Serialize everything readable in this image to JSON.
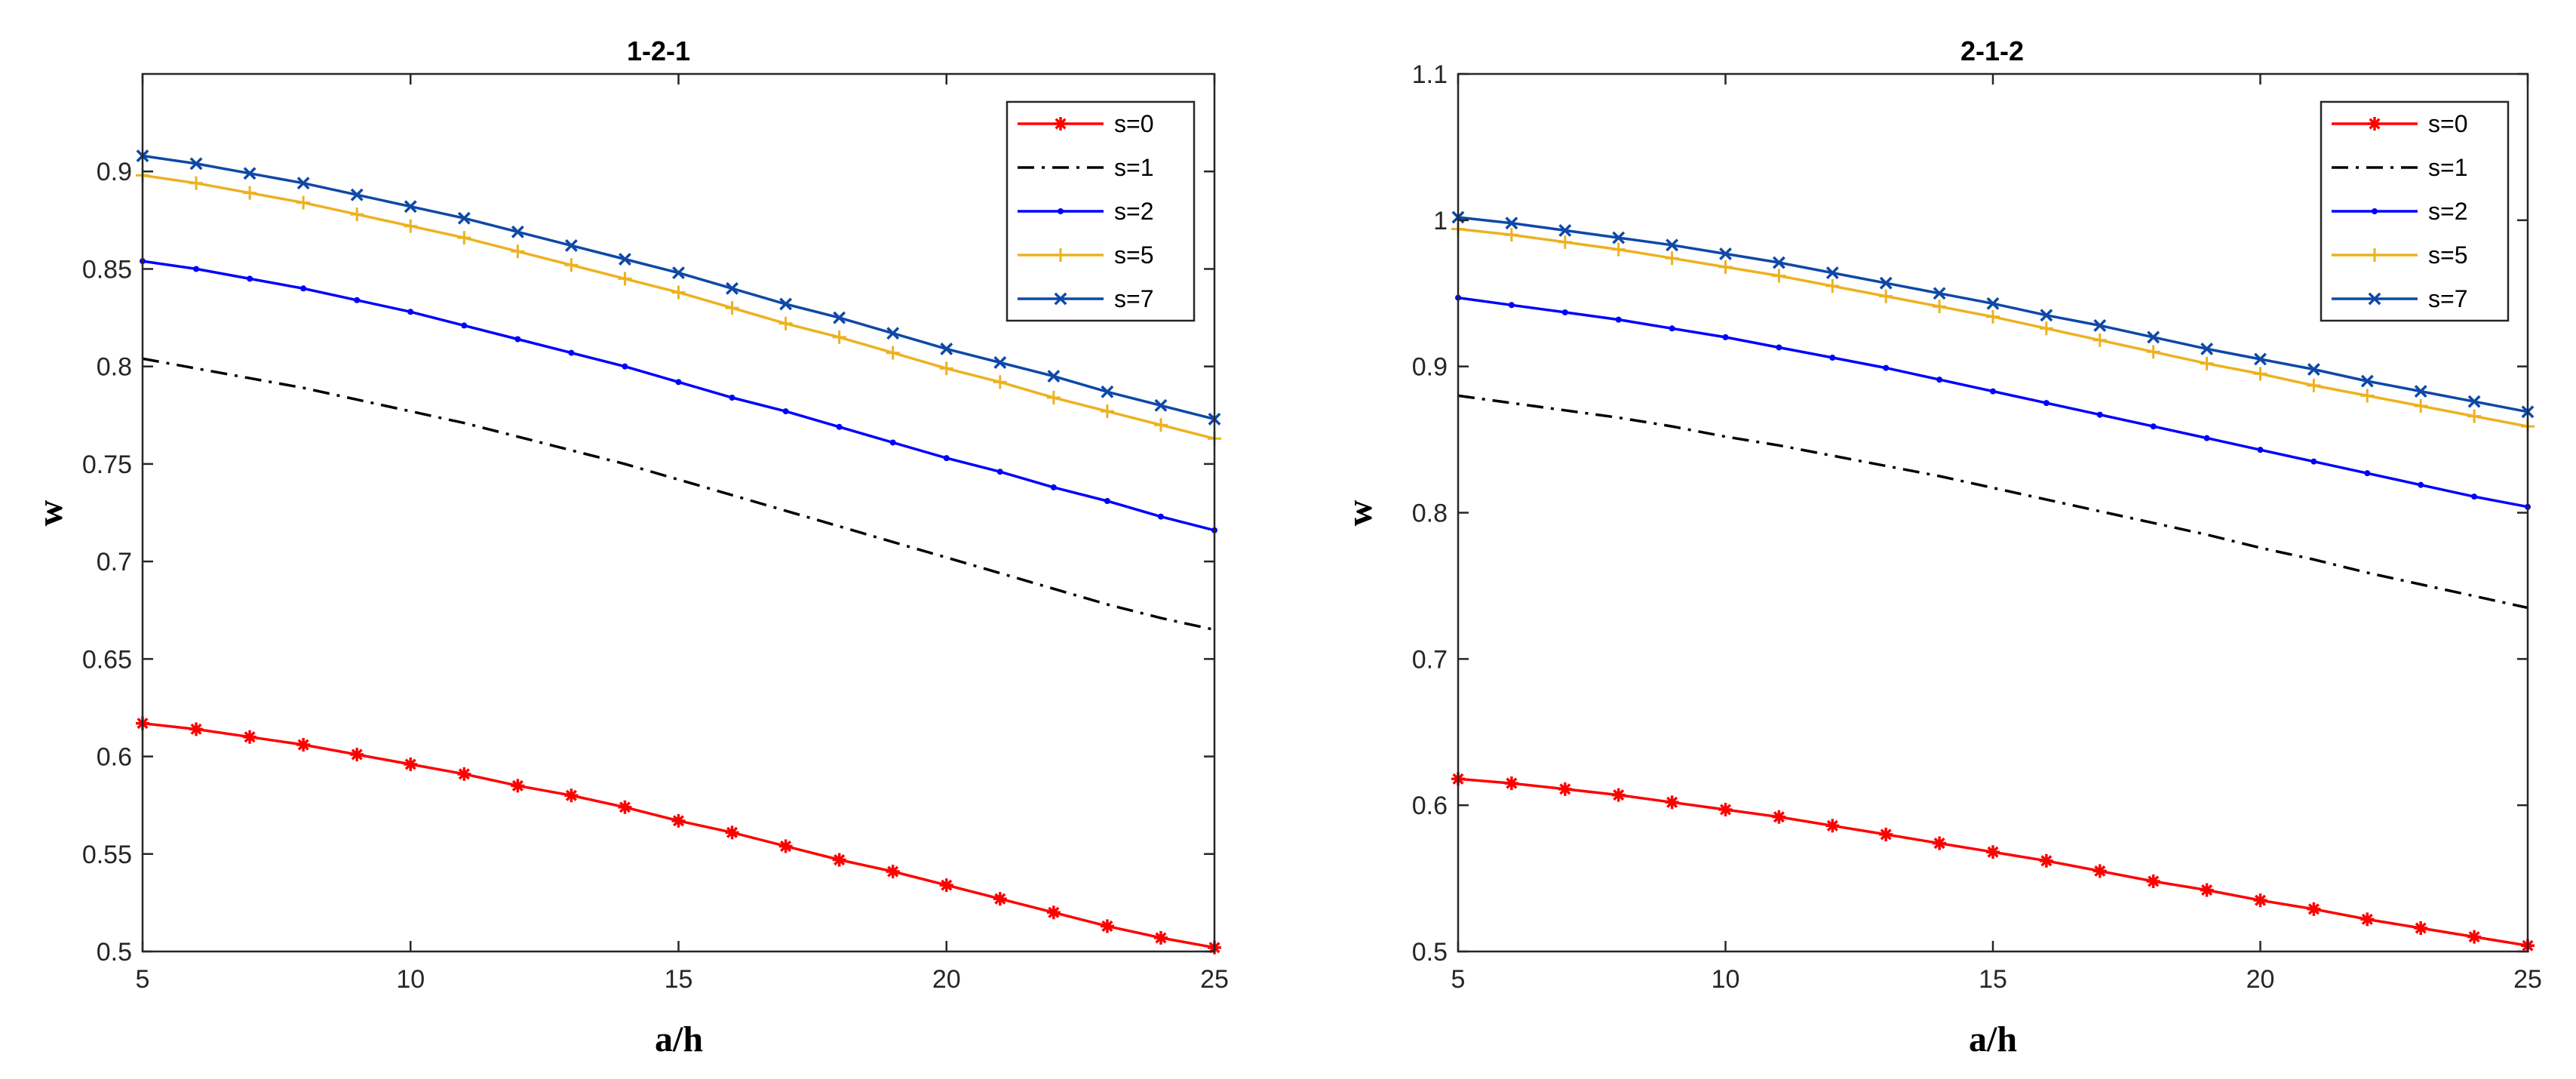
{
  "chart_data": [
    {
      "type": "line",
      "title": "1-2-1",
      "xlabel": "a/h",
      "ylabel": "w",
      "xlim": [
        5,
        25
      ],
      "ylim": [
        0.5,
        0.95
      ],
      "xticks": [
        "5",
        "10",
        "15",
        "20",
        "25"
      ],
      "yticks": [
        "0.5",
        "0.55",
        "0.6",
        "0.65",
        "0.7",
        "0.75",
        "0.8",
        "0.85",
        "0.9"
      ],
      "grid": false,
      "legend_position": "top-right",
      "x": [
        5,
        6,
        7,
        8,
        9,
        10,
        11,
        12,
        13,
        14,
        15,
        16,
        17,
        18,
        19,
        20,
        21,
        22,
        23,
        24,
        25
      ],
      "series": [
        {
          "name": "s=0",
          "color": "#ff0000",
          "line": "solid",
          "marker": "asterisk",
          "values": [
            0.617,
            0.614,
            0.61,
            0.606,
            0.601,
            0.596,
            0.591,
            0.585,
            0.58,
            0.574,
            0.567,
            0.561,
            0.554,
            0.547,
            0.541,
            0.534,
            0.527,
            0.52,
            0.513,
            0.507,
            0.502
          ]
        },
        {
          "name": "s=1",
          "color": "#000000",
          "line": "dashdot",
          "marker": "none",
          "values": [
            0.804,
            0.799,
            0.794,
            0.789,
            0.783,
            0.777,
            0.771,
            0.764,
            0.757,
            0.75,
            0.742,
            0.734,
            0.726,
            0.718,
            0.71,
            0.702,
            0.694,
            0.686,
            0.678,
            0.671,
            0.665
          ]
        },
        {
          "name": "s=2",
          "color": "#0000ff",
          "line": "solid",
          "marker": "point",
          "values": [
            0.854,
            0.85,
            0.845,
            0.84,
            0.834,
            0.828,
            0.821,
            0.814,
            0.807,
            0.8,
            0.792,
            0.784,
            0.777,
            0.769,
            0.761,
            0.753,
            0.746,
            0.738,
            0.731,
            0.723,
            0.716
          ]
        },
        {
          "name": "s=5",
          "color": "#edb120",
          "line": "solid",
          "marker": "plus",
          "values": [
            0.898,
            0.894,
            0.889,
            0.884,
            0.878,
            0.872,
            0.866,
            0.859,
            0.852,
            0.845,
            0.838,
            0.83,
            0.822,
            0.815,
            0.807,
            0.799,
            0.792,
            0.784,
            0.777,
            0.77,
            0.763
          ]
        },
        {
          "name": "s=7",
          "color": "#0e48a8",
          "line": "solid",
          "marker": "cross",
          "values": [
            0.908,
            0.904,
            0.899,
            0.894,
            0.888,
            0.882,
            0.876,
            0.869,
            0.862,
            0.855,
            0.848,
            0.84,
            0.832,
            0.825,
            0.817,
            0.809,
            0.802,
            0.795,
            0.787,
            0.78,
            0.773
          ]
        }
      ]
    },
    {
      "type": "line",
      "title": "2-1-2",
      "xlabel": "a/h",
      "ylabel": "w",
      "xlim": [
        5,
        25
      ],
      "ylim": [
        0.5,
        1.1
      ],
      "xticks": [
        "5",
        "10",
        "15",
        "20",
        "25"
      ],
      "yticks": [
        "0.5",
        "0.6",
        "0.7",
        "0.8",
        "0.9",
        "1",
        "1.1"
      ],
      "grid": false,
      "legend_position": "top-right",
      "x": [
        5,
        6,
        7,
        8,
        9,
        10,
        11,
        12,
        13,
        14,
        15,
        16,
        17,
        18,
        19,
        20,
        21,
        22,
        23,
        24,
        25
      ],
      "series": [
        {
          "name": "s=0",
          "color": "#ff0000",
          "line": "solid",
          "marker": "asterisk",
          "values": [
            0.618,
            0.615,
            0.611,
            0.607,
            0.602,
            0.597,
            0.592,
            0.586,
            0.58,
            0.574,
            0.568,
            0.562,
            0.555,
            0.548,
            0.542,
            0.535,
            0.529,
            0.522,
            0.516,
            0.51,
            0.504
          ]
        },
        {
          "name": "s=1",
          "color": "#000000",
          "line": "dashdot",
          "marker": "none",
          "values": [
            0.88,
            0.875,
            0.87,
            0.865,
            0.859,
            0.852,
            0.846,
            0.839,
            0.832,
            0.825,
            0.817,
            0.809,
            0.801,
            0.793,
            0.785,
            0.776,
            0.768,
            0.759,
            0.751,
            0.743,
            0.735
          ]
        },
        {
          "name": "s=2",
          "color": "#0000ff",
          "line": "solid",
          "marker": "point",
          "values": [
            0.947,
            0.942,
            0.937,
            0.932,
            0.926,
            0.92,
            0.913,
            0.906,
            0.899,
            0.891,
            0.883,
            0.875,
            0.867,
            0.859,
            0.851,
            0.843,
            0.835,
            0.827,
            0.819,
            0.811,
            0.804
          ]
        },
        {
          "name": "s=5",
          "color": "#edb120",
          "line": "solid",
          "marker": "plus",
          "values": [
            0.994,
            0.99,
            0.985,
            0.98,
            0.974,
            0.968,
            0.962,
            0.955,
            0.948,
            0.941,
            0.934,
            0.926,
            0.918,
            0.91,
            0.902,
            0.895,
            0.887,
            0.88,
            0.873,
            0.866,
            0.859
          ]
        },
        {
          "name": "s=7",
          "color": "#0e48a8",
          "line": "solid",
          "marker": "cross",
          "values": [
            1.002,
            0.998,
            0.993,
            0.988,
            0.983,
            0.977,
            0.971,
            0.964,
            0.957,
            0.95,
            0.943,
            0.935,
            0.928,
            0.92,
            0.912,
            0.905,
            0.898,
            0.89,
            0.883,
            0.876,
            0.869
          ]
        }
      ]
    }
  ]
}
